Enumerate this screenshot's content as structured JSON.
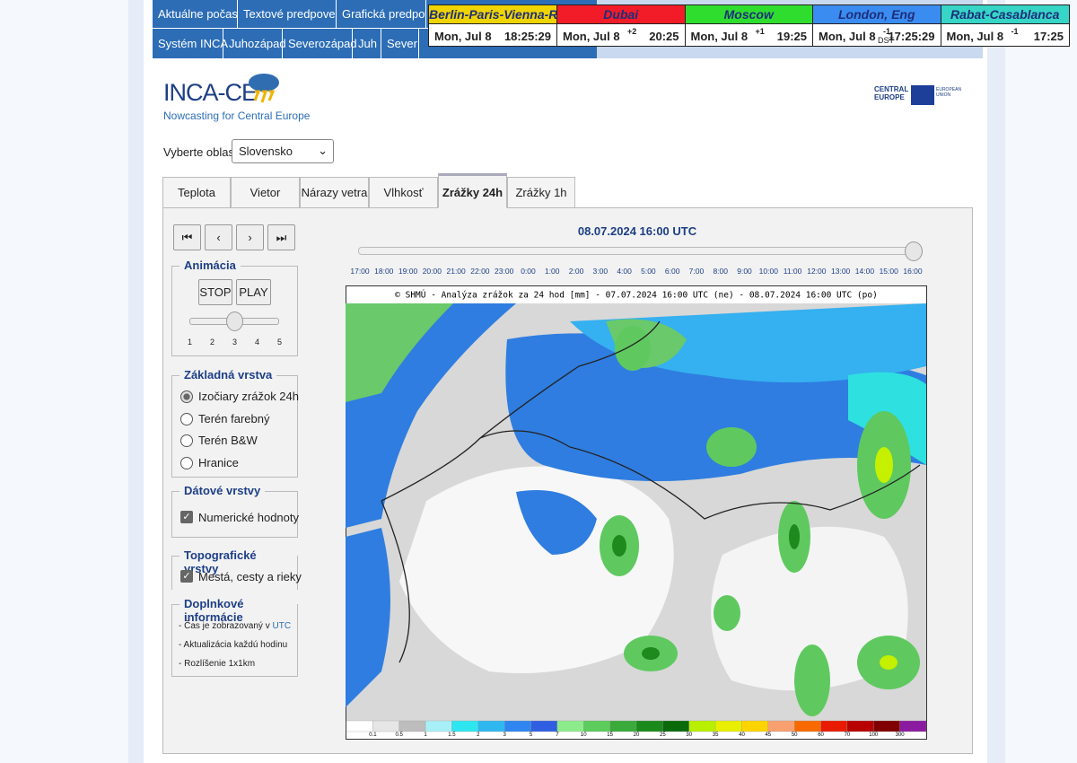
{
  "nav": {
    "row1": [
      "Aktuálne počasie",
      "Textové predpovede",
      "Grafická predpoveď"
    ],
    "row2": [
      "Systém INCA",
      "Juhozápad",
      "Severozápad",
      "Juh",
      "Sever"
    ]
  },
  "clocks": [
    {
      "city": "Berlin-Paris-Vienna-Roma",
      "date": "Mon, Jul 8",
      "time": "18:25:29"
    },
    {
      "city": "Dubai",
      "date": "Mon, Jul 8",
      "offset": "+2",
      "time": "20:25"
    },
    {
      "city": "Moscow",
      "date": "Mon, Jul 8",
      "offset": "+1",
      "time": "19:25"
    },
    {
      "city": "London, Eng",
      "date": "Mon, Jul 8",
      "offset": "-1",
      "dst": "DST",
      "time": "17:25:29"
    },
    {
      "city": "Rabat-Casablanca",
      "date": "Mon, Jul 8",
      "offset": "-1",
      "time": "17:25"
    }
  ],
  "logo": {
    "title": "INCA-CE",
    "subtitle": "Nowcasting for Central Europe",
    "partner": "CENTRAL EUROPE",
    "eu": "EUROPEAN UNION"
  },
  "region": {
    "label": "Vyberte oblasť:",
    "selected": "Slovensko"
  },
  "tabs": [
    "Teplota",
    "Vietor",
    "Nárazy vetra",
    "Vlhkosť",
    "Zrážky 24h",
    "Zrážky 1h"
  ],
  "animation": {
    "legend": "Animácia",
    "buttons": [
      "STOP",
      "PLAY"
    ],
    "speeds": [
      1,
      2,
      3,
      4,
      5
    ]
  },
  "base_layer": {
    "legend": "Základná vrstva",
    "options": [
      "Izočiary zrážok 24h",
      "Terén farebný",
      "Terén B&W",
      "Hranice"
    ]
  },
  "data_layers": {
    "legend": "Dátové vrstvy",
    "options": [
      "Numerické hodnoty"
    ]
  },
  "topo_layers": {
    "legend": "Topografické vrstvy",
    "options": [
      "Mestá, cesty a rieky"
    ]
  },
  "info": {
    "legend": "Doplnkové informácie",
    "lines": [
      {
        "text": "- Čas je zobrazovaný v ",
        "link": "UTC"
      },
      {
        "text": "- Aktualizácia každú hodinu"
      },
      {
        "text": "- Rozlíšenie 1x1km"
      }
    ]
  },
  "timestamp": "08.07.2024 16:00 UTC",
  "times": [
    "17:00",
    "18:00",
    "19:00",
    "20:00",
    "21:00",
    "22:00",
    "23:00",
    "0:00",
    "1:00",
    "2:00",
    "3:00",
    "4:00",
    "5:00",
    "6:00",
    "7:00",
    "8:00",
    "9:00",
    "10:00",
    "11:00",
    "12:00",
    "13:00",
    "14:00",
    "15:00",
    "16:00"
  ],
  "map": {
    "title": "© SHMÚ - Analýza zrážok za 24 hod [mm] - 07.07.2024 16:00 UTC (ne) - 08.07.2024 16:00 UTC (po)",
    "scale": [
      0.1,
      0.5,
      1,
      1.5,
      2,
      3,
      5,
      7,
      10,
      15,
      20,
      25,
      30,
      35,
      40,
      45,
      50,
      60,
      70,
      100,
      300
    ]
  }
}
